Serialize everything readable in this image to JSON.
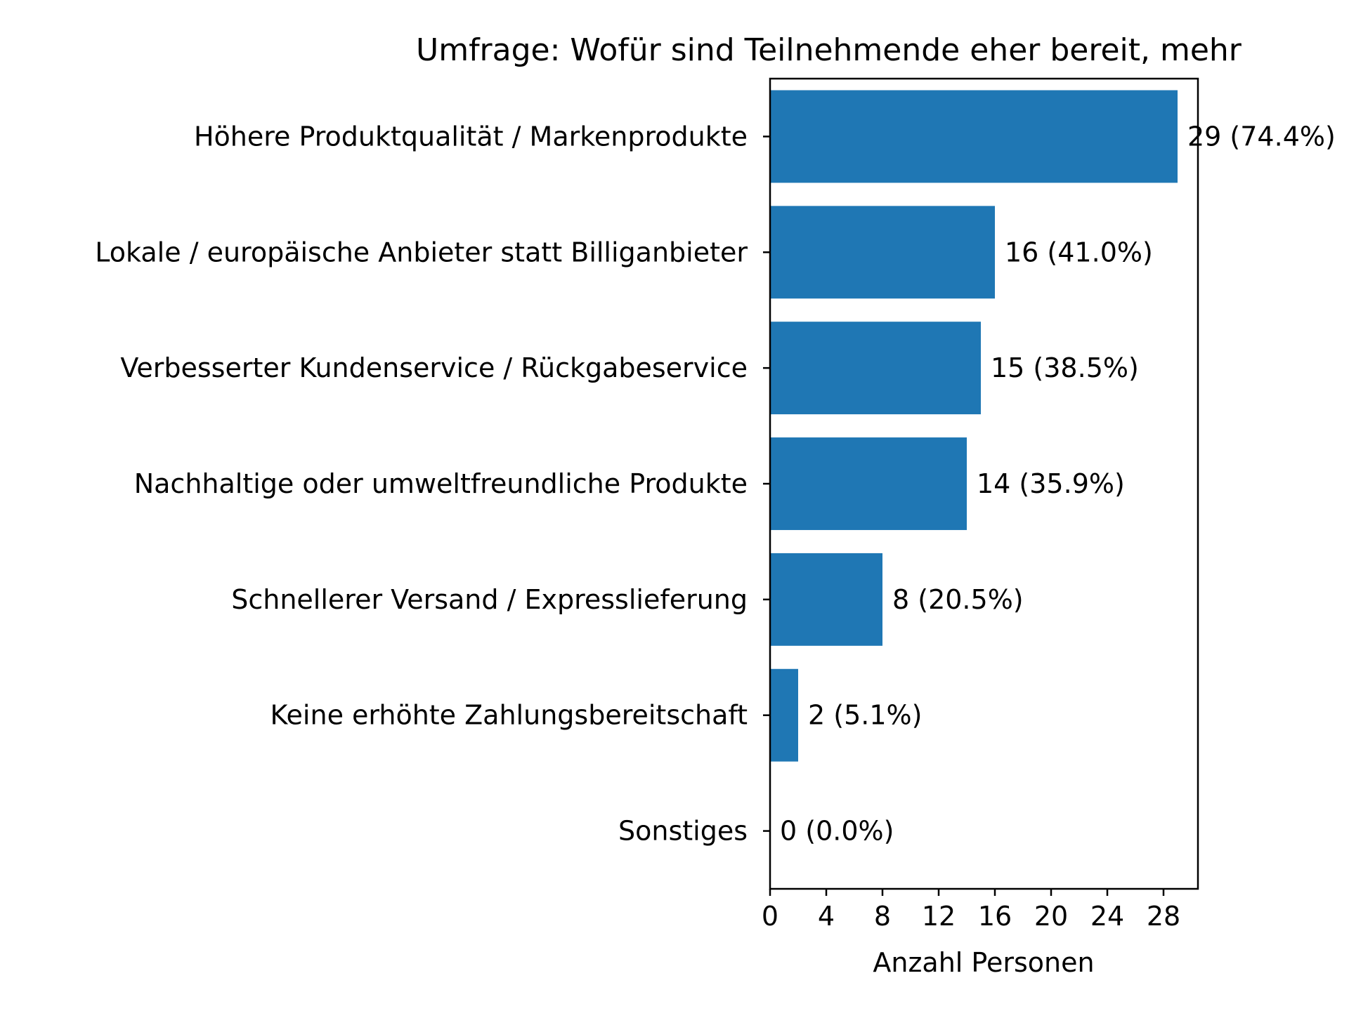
{
  "chart_data": {
    "type": "bar",
    "orientation": "horizontal",
    "title": "Umfrage: Wofür sind Teilnehmende eher bereit, mehr",
    "xlabel": "Anzahl Personen",
    "ylabel": "",
    "xlim": [
      0,
      30.45
    ],
    "xticks": [
      "0",
      "4",
      "8",
      "12",
      "16",
      "20",
      "24",
      "28"
    ],
    "grid": false,
    "legend": "none",
    "bar_color": "#1f77b4",
    "categories": [
      "Höhere Produktqualität / Markenprodukte",
      "Lokale / europäische Anbieter statt Billiganbieter",
      "Verbesserter Kundenservice / Rückgabeservice",
      "Nachhaltige oder umweltfreundliche Produkte",
      "Schnellerer Versand / Expresslieferung",
      "Keine erhöhte Zahlungsbereitschaft",
      "Sonstiges"
    ],
    "values": [
      29,
      16,
      15,
      14,
      8,
      2,
      0
    ],
    "value_labels": [
      "29 (74.4%)",
      "16 (41.0%)",
      "15 (38.5%)",
      "14 (35.9%)",
      "8 (20.5%)",
      "2 (5.1%)",
      "0 (0.0%)"
    ]
  }
}
